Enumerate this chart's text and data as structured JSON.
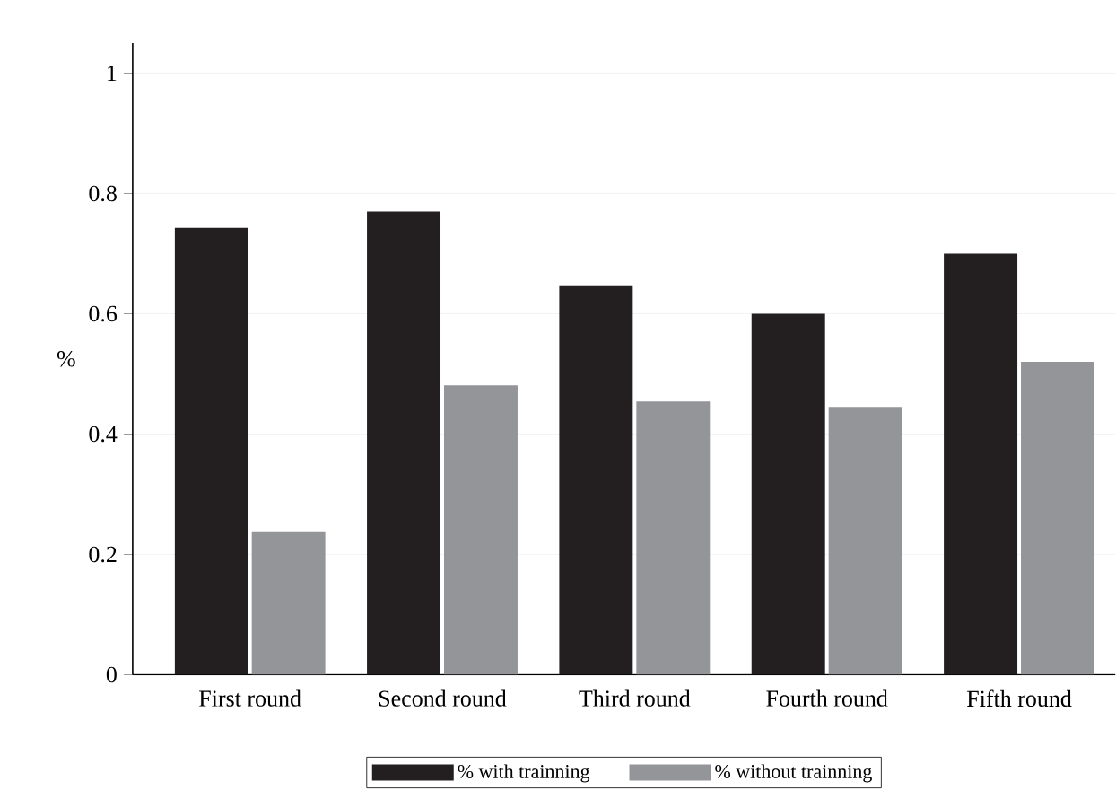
{
  "chart_data": {
    "type": "bar",
    "ylabel": "%",
    "categories": [
      "First round",
      "Second round",
      "Third round",
      "Fourth round",
      "Fifth round"
    ],
    "series": [
      {
        "name": "% with trainning",
        "color": "#231f20",
        "values": [
          0.743,
          0.77,
          0.646,
          0.6,
          0.7
        ]
      },
      {
        "name": "% without trainning",
        "color": "#939598",
        "values": [
          0.237,
          0.481,
          0.454,
          0.445,
          0.52
        ]
      }
    ],
    "ylim": [
      0,
      1.05
    ],
    "yticks": [
      0,
      0.2,
      0.4,
      0.6,
      0.8,
      1
    ],
    "grid": "y",
    "legend": "bottom"
  }
}
